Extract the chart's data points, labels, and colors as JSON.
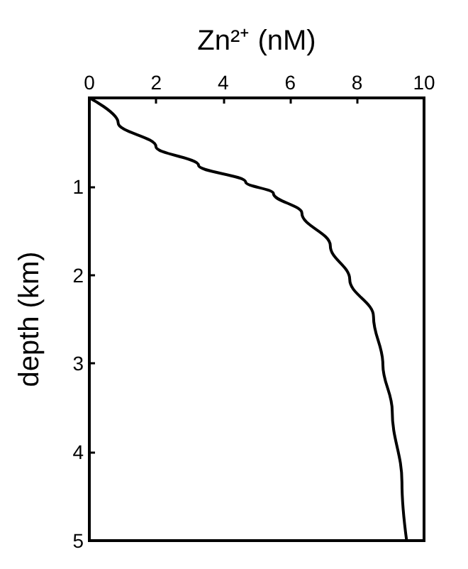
{
  "chart_data": {
    "type": "line",
    "xlabel": "Zn²⁺ (nM)",
    "ylabel": "depth (km)",
    "x": [
      0,
      0.86,
      1.99,
      3.26,
      4.67,
      5.5,
      6.35,
      7.2,
      7.78,
      8.49,
      8.77,
      9.05,
      9.34,
      9.48
    ],
    "series": [
      {
        "color": "#000000",
        "values": [
          0,
          0.28,
          0.55,
          0.76,
          0.95,
          1.08,
          1.3,
          1.67,
          2.05,
          2.47,
          3.01,
          3.54,
          4.34,
          5
        ]
      }
    ],
    "xlim": [
      0,
      10
    ],
    "xticks": [
      0,
      2,
      4,
      6,
      8,
      10
    ],
    "ylim": [
      5,
      0
    ],
    "yticks": [
      {
        "value": 0,
        "label": null
      },
      1,
      2,
      3,
      4,
      5
    ],
    "grid": false,
    "marker": "none",
    "line_style": "solid"
  }
}
